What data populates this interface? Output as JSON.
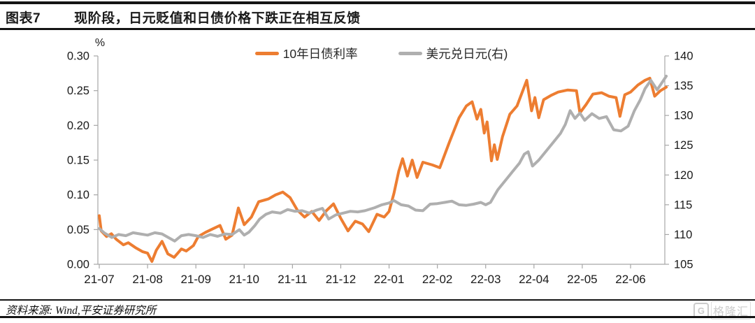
{
  "header": {
    "figure_label": "图表7",
    "title": "现阶段，日元贬值和日债价格下跌正在相互反馈"
  },
  "chart_data": {
    "type": "line",
    "legend_position": "top",
    "grid": false,
    "unit_label": "%",
    "x_ticks": [
      "21-07",
      "21-08",
      "21-09",
      "21-10",
      "21-11",
      "21-12",
      "22-01",
      "22-02",
      "22-03",
      "22-04",
      "22-05",
      "22-06"
    ],
    "left_axis": {
      "unit": "%",
      "min": 0.0,
      "max": 0.3,
      "tick_labels": [
        "0.00",
        "0.05",
        "0.10",
        "0.15",
        "0.20",
        "0.25",
        "0.30"
      ]
    },
    "right_axis": {
      "min": 105,
      "max": 140,
      "tick_labels": [
        "105",
        "110",
        "115",
        "120",
        "125",
        "130",
        "135",
        "140"
      ]
    },
    "series": [
      {
        "name": "10年日债利率",
        "axis": "left",
        "color": "#ED7D31",
        "points": [
          [
            0,
            0.07
          ],
          [
            0.04,
            0.048
          ],
          [
            0.15,
            0.04
          ],
          [
            0.25,
            0.044
          ],
          [
            0.35,
            0.036
          ],
          [
            0.5,
            0.028
          ],
          [
            0.6,
            0.031
          ],
          [
            0.75,
            0.024
          ],
          [
            0.9,
            0.018
          ],
          [
            1,
            0.016
          ],
          [
            1.09,
            0.004
          ],
          [
            1.18,
            0.02
          ],
          [
            1.3,
            0.033
          ],
          [
            1.42,
            0.015
          ],
          [
            1.55,
            0.01
          ],
          [
            1.7,
            0.022
          ],
          [
            1.8,
            0.019
          ],
          [
            1.95,
            0.027
          ],
          [
            2.05,
            0.04
          ],
          [
            2.2,
            0.046
          ],
          [
            2.35,
            0.051
          ],
          [
            2.5,
            0.056
          ],
          [
            2.62,
            0.036
          ],
          [
            2.75,
            0.042
          ],
          [
            2.88,
            0.081
          ],
          [
            3,
            0.057
          ],
          [
            3.15,
            0.068
          ],
          [
            3.3,
            0.09
          ],
          [
            3.5,
            0.094
          ],
          [
            3.65,
            0.1
          ],
          [
            3.8,
            0.104
          ],
          [
            3.95,
            0.096
          ],
          [
            4.1,
            0.078
          ],
          [
            4.25,
            0.068
          ],
          [
            4.4,
            0.076
          ],
          [
            4.55,
            0.063
          ],
          [
            4.7,
            0.077
          ],
          [
            4.85,
            0.087
          ],
          [
            5,
            0.066
          ],
          [
            5.15,
            0.048
          ],
          [
            5.3,
            0.062
          ],
          [
            5.45,
            0.058
          ],
          [
            5.58,
            0.047
          ],
          [
            5.75,
            0.072
          ],
          [
            5.9,
            0.068
          ],
          [
            6,
            0.076
          ],
          [
            6.1,
            0.102
          ],
          [
            6.2,
            0.134
          ],
          [
            6.28,
            0.152
          ],
          [
            6.38,
            0.127
          ],
          [
            6.48,
            0.15
          ],
          [
            6.58,
            0.125
          ],
          [
            6.7,
            0.147
          ],
          [
            6.9,
            0.143
          ],
          [
            7.05,
            0.139
          ],
          [
            7.25,
            0.176
          ],
          [
            7.45,
            0.211
          ],
          [
            7.6,
            0.228
          ],
          [
            7.72,
            0.234
          ],
          [
            7.82,
            0.209
          ],
          [
            7.9,
            0.223
          ],
          [
            7.97,
            0.189
          ],
          [
            8.03,
            0.205
          ],
          [
            8.12,
            0.149
          ],
          [
            8.18,
            0.172
          ],
          [
            8.24,
            0.151
          ],
          [
            8.35,
            0.184
          ],
          [
            8.5,
            0.216
          ],
          [
            8.65,
            0.228
          ],
          [
            8.85,
            0.265
          ],
          [
            8.95,
            0.221
          ],
          [
            9.02,
            0.24
          ],
          [
            9.1,
            0.211
          ],
          [
            9.2,
            0.237
          ],
          [
            9.35,
            0.243
          ],
          [
            9.5,
            0.248
          ],
          [
            9.7,
            0.251
          ],
          [
            9.88,
            0.25
          ],
          [
            9.95,
            0.218
          ],
          [
            10.08,
            0.23
          ],
          [
            10.22,
            0.245
          ],
          [
            10.4,
            0.247
          ],
          [
            10.55,
            0.242
          ],
          [
            10.7,
            0.24
          ],
          [
            10.78,
            0.213
          ],
          [
            10.88,
            0.244
          ],
          [
            11,
            0.248
          ],
          [
            11.15,
            0.258
          ],
          [
            11.3,
            0.265
          ],
          [
            11.4,
            0.268
          ],
          [
            11.5,
            0.242
          ],
          [
            11.62,
            0.25
          ],
          [
            11.74,
            0.255
          ]
        ]
      },
      {
        "name": "美元兑日元(右)",
        "axis": "right",
        "color": "#AFAFAF",
        "points": [
          [
            0,
            111
          ],
          [
            0.1,
            110.3
          ],
          [
            0.26,
            109.5
          ],
          [
            0.4,
            110
          ],
          [
            0.55,
            109.8
          ],
          [
            0.7,
            110.3
          ],
          [
            0.85,
            110.1
          ],
          [
            1,
            109.9
          ],
          [
            1.15,
            110.3
          ],
          [
            1.3,
            110.1
          ],
          [
            1.45,
            109.4
          ],
          [
            1.56,
            108.9
          ],
          [
            1.7,
            109.8
          ],
          [
            1.85,
            110
          ],
          [
            2,
            109.8
          ],
          [
            2.15,
            109.5
          ],
          [
            2.3,
            110
          ],
          [
            2.45,
            109.7
          ],
          [
            2.6,
            110.1
          ],
          [
            2.75,
            110
          ],
          [
            2.9,
            110.8
          ],
          [
            3,
            109.9
          ],
          [
            3.1,
            110.4
          ],
          [
            3.22,
            111.5
          ],
          [
            3.32,
            112.6
          ],
          [
            3.45,
            113.4
          ],
          [
            3.58,
            113.8
          ],
          [
            3.75,
            113.6
          ],
          [
            3.9,
            114.2
          ],
          [
            4.05,
            113.9
          ],
          [
            4.2,
            114
          ],
          [
            4.35,
            113.6
          ],
          [
            4.5,
            114.1
          ],
          [
            4.62,
            114.4
          ],
          [
            4.75,
            112.6
          ],
          [
            4.9,
            113.3
          ],
          [
            5.05,
            113.6
          ],
          [
            5.2,
            113.9
          ],
          [
            5.35,
            113.8
          ],
          [
            5.5,
            114
          ],
          [
            5.7,
            114.5
          ],
          [
            5.85,
            115
          ],
          [
            6,
            115.3
          ],
          [
            6.1,
            115.7
          ],
          [
            6.25,
            115
          ],
          [
            6.4,
            114.8
          ],
          [
            6.55,
            114.1
          ],
          [
            6.7,
            114
          ],
          [
            6.85,
            115.1
          ],
          [
            7,
            115.2
          ],
          [
            7.15,
            115.4
          ],
          [
            7.3,
            115.6
          ],
          [
            7.45,
            115
          ],
          [
            7.6,
            114.9
          ],
          [
            7.75,
            115.1
          ],
          [
            7.9,
            115.4
          ],
          [
            8,
            115
          ],
          [
            8.1,
            115.4
          ],
          [
            8.25,
            117.5
          ],
          [
            8.4,
            119
          ],
          [
            8.55,
            120.5
          ],
          [
            8.7,
            122
          ],
          [
            8.8,
            123.5
          ],
          [
            8.88,
            123.9
          ],
          [
            8.97,
            121.5
          ],
          [
            9.1,
            122.5
          ],
          [
            9.25,
            124
          ],
          [
            9.4,
            125.5
          ],
          [
            9.55,
            127
          ],
          [
            9.65,
            128.5
          ],
          [
            9.75,
            130.8
          ],
          [
            9.85,
            129.5
          ],
          [
            9.95,
            130.4
          ],
          [
            10.05,
            129.2
          ],
          [
            10.2,
            130.3
          ],
          [
            10.35,
            129.5
          ],
          [
            10.5,
            129.8
          ],
          [
            10.65,
            127.6
          ],
          [
            10.8,
            127.4
          ],
          [
            10.95,
            128.2
          ],
          [
            11.08,
            130.8
          ],
          [
            11.2,
            132.6
          ],
          [
            11.3,
            134.5
          ],
          [
            11.42,
            135.9
          ],
          [
            11.55,
            134.3
          ],
          [
            11.65,
            135.5
          ],
          [
            11.74,
            136.6
          ]
        ]
      }
    ]
  },
  "footer": {
    "source": "资料来源: Wind,平安证券研究所",
    "watermark_g": "G",
    "watermark": "格隆汇"
  },
  "colors": {
    "accent_orange": "#ED7D31",
    "series_gray": "#AFAFAF",
    "axis_gray": "#A6A6A6",
    "rule_black": "#141414"
  }
}
